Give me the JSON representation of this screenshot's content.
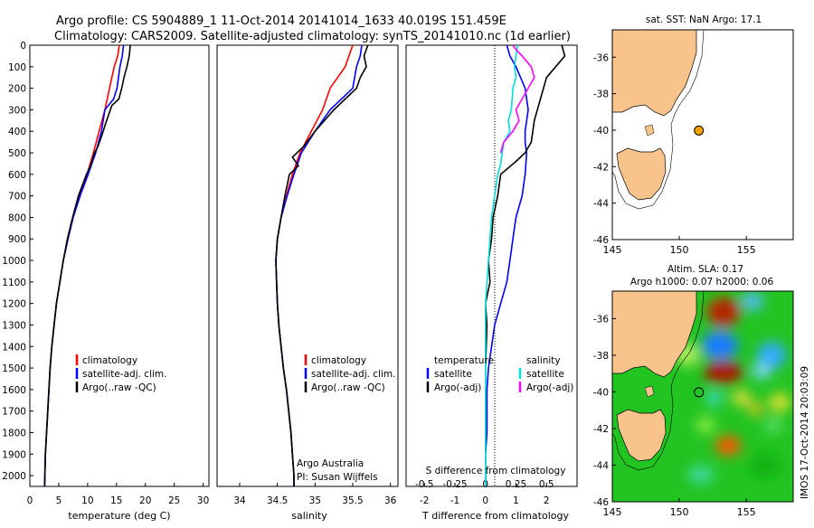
{
  "header": {
    "line1": "Argo profile: CS 5904889_1 11-Oct-2014 20141014_1633 40.019S 151.459E",
    "line2": "Climatology: CARS2009. Satellite-adjusted climatology: synTS_20141010.nc (1d earlier)"
  },
  "watermark": "IMOS 17-Oct-2014 20:03:09",
  "colors": {
    "climatology": "#ff0000",
    "satellite": "#0000ff",
    "argo": "#000000",
    "sal_satellite": "#00dddd",
    "sal_argo": "#ff00ff",
    "land": "#f9c48c",
    "sst_marker": "#f5a300"
  },
  "chart_data": [
    {
      "type": "line",
      "xlabel": "temperature (deg C)",
      "xlim": [
        0,
        31
      ],
      "ylim": [
        2050,
        0
      ],
      "xticks": [
        "0",
        "5",
        "10",
        "15",
        "20",
        "25",
        "30"
      ],
      "yticks": [
        "0",
        "100",
        "200",
        "300",
        "400",
        "500",
        "600",
        "700",
        "800",
        "900",
        "1000",
        "1100",
        "1200",
        "1300",
        "1400",
        "1500",
        "1600",
        "1700",
        "1800",
        "1900",
        "2000"
      ],
      "legend": [
        "climatology",
        "satellite-adj. clim.",
        "Argo(..raw -QC)"
      ],
      "series": [
        {
          "name": "climatology",
          "color": "#ff0000",
          "points": [
            [
              15.5,
              0
            ],
            [
              15.2,
              50
            ],
            [
              14.6,
              100
            ],
            [
              13.8,
              200
            ],
            [
              13.0,
              300
            ],
            [
              12.0,
              400
            ],
            [
              11.0,
              500
            ],
            [
              9.9,
              600
            ],
            [
              8.6,
              700
            ],
            [
              7.5,
              800
            ],
            [
              6.6,
              900
            ],
            [
              5.8,
              1000
            ],
            [
              5.2,
              1100
            ],
            [
              4.6,
              1200
            ],
            [
              4.2,
              1300
            ],
            [
              3.8,
              1400
            ],
            [
              3.5,
              1500
            ],
            [
              3.3,
              1600
            ],
            [
              3.1,
              1700
            ],
            [
              2.9,
              1800
            ],
            [
              2.7,
              1900
            ],
            [
              2.6,
              2000
            ],
            [
              2.55,
              2050
            ]
          ]
        },
        {
          "name": "satellite-adj. clim.",
          "color": "#0000ff",
          "points": [
            [
              16.2,
              0
            ],
            [
              16.0,
              50
            ],
            [
              15.6,
              100
            ],
            [
              15.1,
              200
            ],
            [
              14.5,
              250
            ],
            [
              13.0,
              300
            ],
            [
              12.4,
              400
            ],
            [
              11.4,
              500
            ],
            [
              10.1,
              600
            ],
            [
              8.7,
              700
            ],
            [
              7.5,
              800
            ],
            [
              6.6,
              900
            ],
            [
              5.8,
              1000
            ],
            [
              5.2,
              1100
            ],
            [
              4.6,
              1200
            ],
            [
              4.2,
              1300
            ],
            [
              3.8,
              1400
            ],
            [
              3.5,
              1500
            ],
            [
              3.3,
              1600
            ],
            [
              3.1,
              1700
            ],
            [
              2.9,
              1800
            ],
            [
              2.7,
              1900
            ],
            [
              2.6,
              2000
            ],
            [
              2.55,
              2050
            ]
          ]
        },
        {
          "name": "Argo(..raw -QC)",
          "color": "#000000",
          "points": [
            [
              17.4,
              0
            ],
            [
              17.2,
              50
            ],
            [
              16.8,
              100
            ],
            [
              16.3,
              150
            ],
            [
              15.9,
              200
            ],
            [
              15.4,
              250
            ],
            [
              14.2,
              280
            ],
            [
              13.3,
              350
            ],
            [
              12.7,
              400
            ],
            [
              11.8,
              470
            ],
            [
              11.2,
              500
            ],
            [
              10.5,
              560
            ],
            [
              9.8,
              600
            ],
            [
              8.4,
              700
            ],
            [
              7.4,
              800
            ],
            [
              6.5,
              900
            ],
            [
              5.8,
              1000
            ],
            [
              5.2,
              1100
            ],
            [
              4.6,
              1200
            ],
            [
              4.2,
              1300
            ],
            [
              3.8,
              1400
            ],
            [
              3.5,
              1500
            ],
            [
              3.3,
              1600
            ],
            [
              3.1,
              1700
            ],
            [
              2.9,
              1800
            ],
            [
              2.7,
              1900
            ],
            [
              2.6,
              2000
            ],
            [
              2.55,
              2050
            ]
          ]
        }
      ]
    },
    {
      "type": "line",
      "xlabel": "salinity",
      "xlim": [
        33.7,
        36.1
      ],
      "ylim": [
        2050,
        0
      ],
      "xticks": [
        "34",
        "34.5",
        "35",
        "35.5",
        "36"
      ],
      "legend": [
        "climatology",
        "satellite-adj. clim.",
        "Argo(..raw -QC)"
      ],
      "annotation": [
        "Argo Australia",
        "PI: Susan Wijffels"
      ],
      "series": [
        {
          "name": "climatology",
          "color": "#ff0000",
          "points": [
            [
              35.5,
              0
            ],
            [
              35.45,
              50
            ],
            [
              35.4,
              100
            ],
            [
              35.3,
              150
            ],
            [
              35.2,
              200
            ],
            [
              35.1,
              300
            ],
            [
              34.95,
              400
            ],
            [
              34.8,
              500
            ],
            [
              34.7,
              600
            ],
            [
              34.62,
              700
            ],
            [
              34.55,
              800
            ],
            [
              34.5,
              900
            ],
            [
              34.48,
              1000
            ],
            [
              34.49,
              1100
            ],
            [
              34.5,
              1200
            ],
            [
              34.52,
              1300
            ],
            [
              34.55,
              1400
            ],
            [
              34.58,
              1500
            ],
            [
              34.62,
              1600
            ],
            [
              34.65,
              1700
            ],
            [
              34.68,
              1800
            ],
            [
              34.7,
              1900
            ],
            [
              34.72,
              2000
            ],
            [
              34.72,
              2050
            ]
          ]
        },
        {
          "name": "satellite-adj. clim.",
          "color": "#0000ff",
          "points": [
            [
              35.62,
              0
            ],
            [
              35.6,
              50
            ],
            [
              35.55,
              100
            ],
            [
              35.5,
              200
            ],
            [
              35.2,
              300
            ],
            [
              35.0,
              400
            ],
            [
              34.82,
              500
            ],
            [
              34.72,
              600
            ],
            [
              34.63,
              700
            ],
            [
              34.55,
              800
            ],
            [
              34.5,
              900
            ],
            [
              34.48,
              1000
            ],
            [
              34.49,
              1100
            ],
            [
              34.5,
              1200
            ],
            [
              34.52,
              1300
            ],
            [
              34.55,
              1400
            ],
            [
              34.58,
              1500
            ],
            [
              34.62,
              1600
            ],
            [
              34.65,
              1700
            ],
            [
              34.68,
              1800
            ],
            [
              34.7,
              1900
            ],
            [
              34.72,
              2000
            ],
            [
              34.72,
              2050
            ]
          ]
        },
        {
          "name": "Argo(..raw -QC)",
          "color": "#000000",
          "points": [
            [
              35.7,
              0
            ],
            [
              35.65,
              50
            ],
            [
              35.68,
              100
            ],
            [
              35.6,
              150
            ],
            [
              35.55,
              200
            ],
            [
              35.4,
              250
            ],
            [
              35.25,
              300
            ],
            [
              35.0,
              400
            ],
            [
              34.85,
              470
            ],
            [
              34.7,
              520
            ],
            [
              34.78,
              560
            ],
            [
              34.66,
              600
            ],
            [
              34.6,
              700
            ],
            [
              34.55,
              800
            ],
            [
              34.5,
              900
            ],
            [
              34.48,
              1000
            ],
            [
              34.49,
              1100
            ],
            [
              34.5,
              1200
            ],
            [
              34.52,
              1300
            ],
            [
              34.55,
              1400
            ],
            [
              34.58,
              1500
            ],
            [
              34.62,
              1600
            ],
            [
              34.65,
              1700
            ],
            [
              34.68,
              1800
            ],
            [
              34.7,
              1900
            ],
            [
              34.72,
              2000
            ],
            [
              34.72,
              2050
            ]
          ]
        }
      ]
    },
    {
      "type": "line",
      "xlabel": "T difference from climatology",
      "xlabel_top": "S difference from climatology",
      "xlim": [
        -2.6,
        3.0
      ],
      "xlim_sal": [
        -0.65,
        0.75
      ],
      "ylim": [
        2050,
        0
      ],
      "xticks": [
        "-2",
        "-1",
        "0",
        "1",
        "2"
      ],
      "xticks_sal": [
        "-0.5",
        "-0.25",
        "0",
        "0.25",
        "0.5"
      ],
      "legend": [
        "temperature",
        "satellite",
        "Argo(-adj)",
        "salinity",
        "satellite",
        "Argo(-adj)"
      ],
      "series": [
        {
          "name": "satellite",
          "color": "#0000ff",
          "points": [
            [
              0.7,
              0
            ],
            [
              0.8,
              50
            ],
            [
              1.0,
              100
            ],
            [
              1.3,
              200
            ],
            [
              1.4,
              300
            ],
            [
              1.3,
              400
            ],
            [
              1.3,
              450
            ],
            [
              1.35,
              500
            ],
            [
              1.3,
              600
            ],
            [
              1.2,
              700
            ],
            [
              1.0,
              800
            ],
            [
              0.9,
              900
            ],
            [
              0.8,
              1000
            ],
            [
              0.7,
              1100
            ],
            [
              0.5,
              1200
            ],
            [
              0.3,
              1300
            ],
            [
              0.2,
              1400
            ],
            [
              0.1,
              1500
            ],
            [
              0.05,
              1600
            ],
            [
              0.05,
              1700
            ],
            [
              0.05,
              1800
            ],
            [
              0.0,
              1900
            ],
            [
              0.0,
              2050
            ]
          ]
        },
        {
          "name": "Argo(-adj)",
          "color": "#000000",
          "points": [
            [
              2.5,
              0
            ],
            [
              2.6,
              50
            ],
            [
              2.3,
              100
            ],
            [
              2.0,
              150
            ],
            [
              1.8,
              250
            ],
            [
              1.6,
              350
            ],
            [
              1.5,
              450
            ],
            [
              1.3,
              500
            ],
            [
              1.0,
              540
            ],
            [
              0.5,
              600
            ],
            [
              0.4,
              700
            ],
            [
              0.25,
              800
            ],
            [
              0.2,
              900
            ],
            [
              0.1,
              1000
            ],
            [
              0.15,
              1100
            ],
            [
              0.0,
              1200
            ],
            [
              0.05,
              1300
            ],
            [
              0.0,
              1500
            ],
            [
              0.0,
              2050
            ]
          ]
        },
        {
          "name": "salinity satellite",
          "color": "#00dddd",
          "points": [
            [
              1.05,
              0
            ],
            [
              1.0,
              50
            ],
            [
              0.95,
              100
            ],
            [
              1.0,
              150
            ],
            [
              0.9,
              200
            ],
            [
              0.85,
              300
            ],
            [
              0.75,
              350
            ],
            [
              0.8,
              400
            ],
            [
              0.6,
              450
            ],
            [
              0.55,
              500
            ],
            [
              0.5,
              550
            ],
            [
              0.4,
              600
            ],
            [
              0.3,
              700
            ],
            [
              0.2,
              800
            ],
            [
              0.15,
              900
            ],
            [
              0.1,
              1000
            ],
            [
              0.05,
              1100
            ],
            [
              0.0,
              1200
            ],
            [
              0.0,
              2050
            ]
          ]
        },
        {
          "name": "salinity Argo(-adj)",
          "color": "#ff00ff",
          "points": [
            [
              0.9,
              0
            ],
            [
              1.0,
              20
            ],
            [
              1.2,
              50
            ],
            [
              1.5,
              100
            ],
            [
              1.6,
              150
            ],
            [
              1.4,
              200
            ],
            [
              1.0,
              300
            ],
            [
              1.1,
              350
            ],
            [
              0.9,
              400
            ],
            [
              0.6,
              450
            ],
            [
              0.5,
              500
            ]
          ]
        }
      ]
    },
    {
      "type": "map",
      "title": "sat. SST: NaN Argo: 17.1",
      "lonlim": [
        145,
        158.5
      ],
      "latlim": [
        -46,
        -34.5
      ],
      "xticks": [
        "145",
        "150",
        "155"
      ],
      "yticks": [
        "-36",
        "-38",
        "-40",
        "-42",
        "-44",
        "-46"
      ],
      "marker": {
        "lon": 151.459,
        "lat": -40.019
      }
    },
    {
      "type": "heatmap",
      "title": "Altim. SLA: 0.17",
      "subtitle": "Argo h1000: 0.07 h2000: 0.06",
      "lonlim": [
        145,
        158.5
      ],
      "latlim": [
        -46,
        -34.5
      ],
      "xticks": [
        "145",
        "150",
        "155"
      ],
      "yticks": [
        "-36",
        "-38",
        "-40",
        "-42",
        "-44",
        "-46"
      ],
      "marker": {
        "lon": 151.459,
        "lat": -40.019
      }
    }
  ]
}
